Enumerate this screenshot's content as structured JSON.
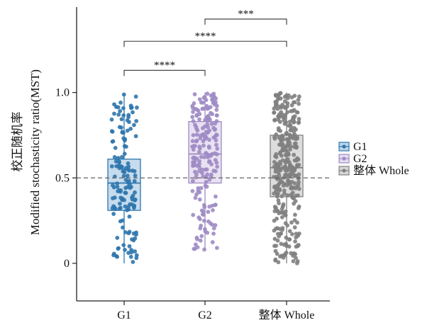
{
  "chart_data": {
    "type": "box",
    "title": "",
    "ylabel_cn": "校正随机率",
    "ylabel_en": "Modified stochasticity ratio(MST)",
    "xlabel": "",
    "ylim": [
      -0.22,
      1.5
    ],
    "yticks": [
      {
        "value": 0,
        "label": "0"
      },
      {
        "value": 0.5,
        "label": "0.5"
      },
      {
        "value": 1.0,
        "label": "1.0"
      }
    ],
    "reference_line": 0.5,
    "categories": [
      "G1",
      "G2",
      "整体 Whole"
    ],
    "series": [
      {
        "name": "G1",
        "color": "#2e76ad",
        "fill": "#bcd5ea",
        "box": {
          "min": 0.0,
          "q1": 0.31,
          "median": 0.47,
          "q3": 0.61,
          "max": 0.99
        },
        "n_points": 150
      },
      {
        "name": "G2",
        "color": "#9f8bc4",
        "fill": "#e4dcf0",
        "box": {
          "min": 0.08,
          "q1": 0.47,
          "median": 0.64,
          "q3": 0.83,
          "max": 1.0
        },
        "n_points": 200
      },
      {
        "name": "整体 Whole",
        "color": "#808080",
        "fill": "#d6d6d6",
        "box": {
          "min": 0.0,
          "q1": 0.39,
          "median": 0.56,
          "q3": 0.75,
          "max": 1.0
        },
        "n_points": 350
      }
    ],
    "significance": [
      {
        "from": 0,
        "to": 1,
        "label": "****",
        "level": 1.13
      },
      {
        "from": 0,
        "to": 2,
        "label": "****",
        "level": 1.3
      },
      {
        "from": 1,
        "to": 2,
        "label": "***",
        "level": 1.43
      }
    ],
    "legend": {
      "position": "right",
      "entries": [
        {
          "label": "G1",
          "color": "#2e76ad",
          "fill": "#bcd5ea"
        },
        {
          "label": "G2",
          "color": "#9f8bc4",
          "fill": "#e4dcf0"
        },
        {
          "label": "整体 Whole",
          "color": "#808080",
          "fill": "#d6d6d6"
        }
      ]
    }
  }
}
